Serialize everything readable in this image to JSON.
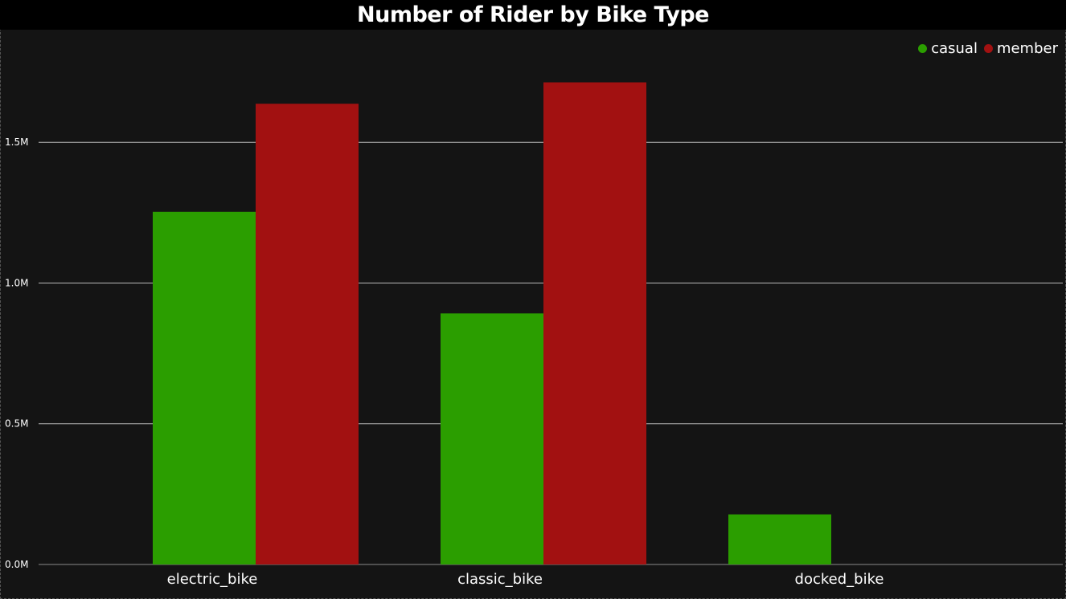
{
  "chart_data": {
    "type": "bar",
    "title": "Number of Rider by Bike Type",
    "xlabel": "",
    "ylabel": "",
    "categories": [
      "electric_bike",
      "classic_bike",
      "docked_bike"
    ],
    "series": [
      {
        "name": "casual",
        "color": "#2b9e00",
        "values": [
          1253000,
          892000,
          178000
        ]
      },
      {
        "name": "member",
        "color": "#a21111",
        "values": [
          1637000,
          1713000,
          0
        ]
      }
    ],
    "yticks": [
      0,
      500000,
      1000000,
      1500000
    ],
    "ytick_labels": [
      "0.0M",
      "0.5M",
      "1.0M",
      "1.5M"
    ],
    "ylim": [
      0,
      1900000
    ],
    "grid": true,
    "legend_position": "top-right"
  }
}
